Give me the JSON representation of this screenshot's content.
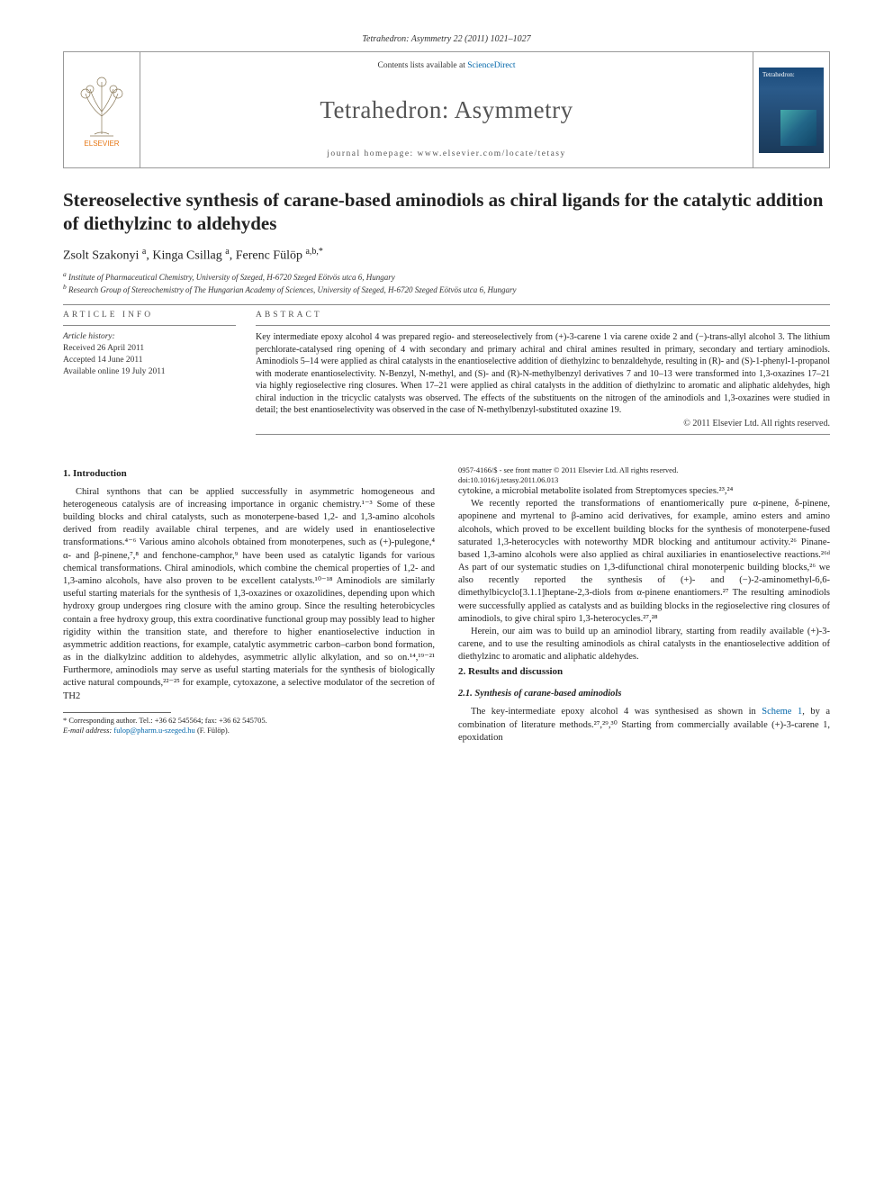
{
  "reference": "Tetrahedron: Asymmetry 22 (2011) 1021–1027",
  "header": {
    "contents_prefix": "Contents lists available at ",
    "contents_link": "ScienceDirect",
    "journal": "Tetrahedron: Asymmetry",
    "homepage": "journal homepage: www.elsevier.com/locate/tetasy",
    "elsevier_label": "ELSEVIER",
    "cover_label": "Tetrahedron:"
  },
  "title": "Stereoselective synthesis of carane-based aminodiols as chiral ligands for the catalytic addition of diethylzinc to aldehydes",
  "authors_html": "Zsolt Szakonyi <sup>a</sup>, Kinga Csillag <sup>a</sup>, Ferenc Fülöp <sup>a,b,*</sup>",
  "affiliations": {
    "a": "Institute of Pharmaceutical Chemistry, University of Szeged, H-6720 Szeged Eötvös utca 6, Hungary",
    "b": "Research Group of Stereochemistry of The Hungarian Academy of Sciences, University of Szeged, H-6720 Szeged Eötvös utca 6, Hungary"
  },
  "article_info": {
    "label": "ARTICLE INFO",
    "history_label": "Article history:",
    "received": "Received 26 April 2011",
    "accepted": "Accepted 14 June 2011",
    "online": "Available online 19 July 2011"
  },
  "abstract": {
    "label": "ABSTRACT",
    "text": "Key intermediate epoxy alcohol 4 was prepared regio- and stereoselectively from (+)-3-carene 1 via carene oxide 2 and (−)-trans-allyl alcohol 3. The lithium perchlorate-catalysed ring opening of 4 with secondary and primary achiral and chiral amines resulted in primary, secondary and tertiary aminodiols. Aminodiols 5–14 were applied as chiral catalysts in the enantioselective addition of diethylzinc to benzaldehyde, resulting in (R)- and (S)-1-phenyl-1-propanol with moderate enantioselectivity. N-Benzyl, N-methyl, and (S)- and (R)-N-methylbenzyl derivatives 7 and 10–13 were transformed into 1,3-oxazines 17–21 via highly regioselective ring closures. When 17–21 were applied as chiral catalysts in the addition of diethylzinc to aromatic and aliphatic aldehydes, high chiral induction in the tricyclic catalysts was observed. The effects of the substituents on the nitrogen of the aminodiols and 1,3-oxazines were studied in detail; the best enantioselectivity was observed in the case of N-methylbenzyl-substituted oxazine 19.",
    "copyright": "© 2011 Elsevier Ltd. All rights reserved."
  },
  "sections": {
    "intro_heading": "1. Introduction",
    "intro_p1": "Chiral synthons that can be applied successfully in asymmetric homogeneous and heterogeneous catalysis are of increasing importance in organic chemistry.¹⁻³ Some of these building blocks and chiral catalysts, such as monoterpene-based 1,2- and 1,3-amino alcohols derived from readily available chiral terpenes, and are widely used in enantioselective transformations.⁴⁻⁶ Various amino alcohols obtained from monoterpenes, such as (+)-pulegone,⁴ α- and β-pinene,⁷,⁸ and fenchone-camphor,⁹ have been used as catalytic ligands for various chemical transformations. Chiral aminodiols, which combine the chemical properties of 1,2- and 1,3-amino alcohols, have also proven to be excellent catalysts.¹⁰⁻¹⁸ Aminodiols are similarly useful starting materials for the synthesis of 1,3-oxazines or oxazolidines, depending upon which hydroxy group undergoes ring closure with the amino group. Since the resulting heterobicycles contain a free hydroxy group, this extra coordinative functional group may possibly lead to higher rigidity within the transition state, and therefore to higher enantioselective induction in asymmetric addition reactions, for example, catalytic asymmetric carbon–carbon bond formation, as in the dialkylzinc addition to aldehydes, asymmetric allylic alkylation, and so on.¹⁴,¹⁹⁻²¹ Furthermore, aminodiols may serve as useful starting materials for the synthesis of biologically active natural compounds,²²⁻²⁵ for example, cytoxazone, a selective modulator of the secretion of TH2",
    "col2_head": "cytokine, a microbial metabolite isolated from Streptomyces species.²³,²⁴",
    "col2_p1": "We recently reported the transformations of enantiomerically pure α-pinene, δ-pinene, apopinene and myrtenal to β-amino acid derivatives, for example, amino esters and amino alcohols, which proved to be excellent building blocks for the synthesis of monoterpene-fused saturated 1,3-heterocycles with noteworthy MDR blocking and antitumour activity.²⁶ Pinane-based 1,3-amino alcohols were also applied as chiral auxiliaries in enantioselective reactions.²⁶ᵈ As part of our systematic studies on 1,3-difunctional chiral monoterpenic building blocks,²⁶ we also recently reported the synthesis of (+)- and (−)-2-aminomethyl-6,6-dimethylbicyclo[3.1.1]heptane-2,3-diols from α-pinene enantiomers.²⁷ The resulting aminodiols were successfully applied as catalysts and as building blocks in the regioselective ring closures of aminodiols, to give chiral spiro 1,3-heterocycles.²⁷,²⁸",
    "col2_p2": "Herein, our aim was to build up an aminodiol library, starting from readily available (+)-3-carene, and to use the resulting aminodiols as chiral catalysts in the enantioselective addition of diethylzinc to aromatic and aliphatic aldehydes.",
    "results_heading": "2. Results and discussion",
    "results_sub": "2.1. Synthesis of carane-based aminodiols",
    "results_p1": "The key-intermediate epoxy alcohol 4 was synthesised as shown in Scheme 1, by a combination of literature methods.²⁷,²⁹,³⁰ Starting from commercially available (+)-3-carene 1, epoxidation"
  },
  "footnote": {
    "corr": "* Corresponding author. Tel.: +36 62 545564; fax: +36 62 545705.",
    "email_label": "E-mail address:",
    "email": "fulop@pharm.u-szeged.hu",
    "email_name": "(F. Fülöp)."
  },
  "doi": {
    "line1": "0957-4166/$ - see front matter © 2011 Elsevier Ltd. All rights reserved.",
    "line2": "doi:10.1016/j.tetasy.2011.06.013"
  },
  "colors": {
    "link": "#0066aa",
    "text": "#222222",
    "rule": "#888888"
  }
}
